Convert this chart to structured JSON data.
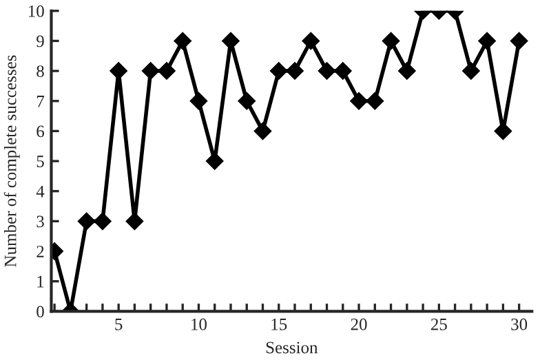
{
  "chart_data": {
    "type": "line",
    "xlabel": "Session",
    "ylabel": "Number of complete successes",
    "x": [
      1,
      2,
      3,
      4,
      5,
      6,
      7,
      8,
      9,
      10,
      11,
      12,
      13,
      14,
      15,
      16,
      17,
      18,
      19,
      20,
      21,
      22,
      23,
      24,
      25,
      26,
      27,
      28,
      29,
      30
    ],
    "series": [
      {
        "color": "#000000",
        "values": [
          2,
          0,
          3,
          3,
          8,
          3,
          8,
          8,
          9,
          7,
          5,
          9,
          7,
          6,
          8,
          8,
          9,
          8,
          8,
          7,
          7,
          9,
          8,
          10,
          10,
          10,
          8,
          9,
          6,
          9
        ]
      }
    ],
    "marker": "diamond",
    "line_style": "solid",
    "grid": false,
    "legend": false,
    "xlim": [
      0.8,
      30.8
    ],
    "ylim": [
      0,
      10
    ],
    "xticks": [
      {
        "value": 1,
        "label": null
      },
      {
        "value": 2,
        "label": null
      },
      {
        "value": 3,
        "label": null
      },
      {
        "value": 4,
        "label": null
      },
      5,
      {
        "value": 6,
        "label": null
      },
      {
        "value": 7,
        "label": null
      },
      {
        "value": 8,
        "label": null
      },
      {
        "value": 9,
        "label": null
      },
      10,
      {
        "value": 11,
        "label": null
      },
      {
        "value": 12,
        "label": null
      },
      {
        "value": 13,
        "label": null
      },
      {
        "value": 14,
        "label": null
      },
      15,
      {
        "value": 16,
        "label": null
      },
      {
        "value": 17,
        "label": null
      },
      {
        "value": 18,
        "label": null
      },
      {
        "value": 19,
        "label": null
      },
      20,
      {
        "value": 21,
        "label": null
      },
      {
        "value": 22,
        "label": null
      },
      {
        "value": 23,
        "label": null
      },
      {
        "value": 24,
        "label": null
      },
      25,
      {
        "value": 26,
        "label": null
      },
      {
        "value": 27,
        "label": null
      },
      {
        "value": 28,
        "label": null
      },
      {
        "value": 29,
        "label": null
      },
      30
    ],
    "yticks": [
      0,
      1,
      2,
      3,
      4,
      5,
      6,
      7,
      8,
      9,
      10
    ]
  }
}
